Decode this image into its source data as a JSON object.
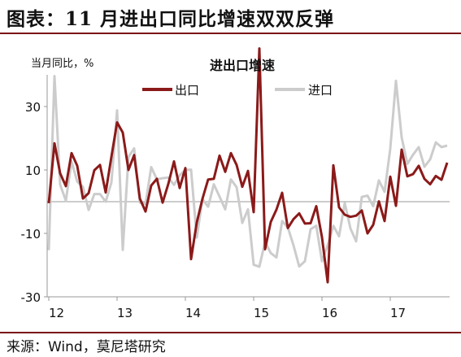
{
  "page": {
    "title": "图表：11 月进出口同比增速双双反弹",
    "source": "来源：Wind，莫尼塔研究"
  },
  "colors": {
    "export": "#8b1a1a",
    "import": "#cccccc",
    "rule": "#7a0f14",
    "axis": "#999999",
    "text": "#111111"
  },
  "chart_data": {
    "type": "line",
    "title": "进出口增速",
    "ylabel": "当月同比，%",
    "xlabel": "",
    "ylim": [
      -30,
      40
    ],
    "yticks": [
      30,
      10,
      -10,
      -30
    ],
    "x_start": "2012-01",
    "x_end": "2017-11",
    "xticks": [
      {
        "label": "12",
        "index": 0
      },
      {
        "label": "13",
        "index": 12
      },
      {
        "label": "14",
        "index": 24
      },
      {
        "label": "15",
        "index": 36
      },
      {
        "label": "16",
        "index": 48
      },
      {
        "label": "17",
        "index": 60
      }
    ],
    "legend": {
      "position": "top-left",
      "entries": [
        "出口",
        "进口"
      ]
    },
    "series": [
      {
        "name": "出口",
        "color": "#8b1a1a",
        "values": [
          -0.5,
          18.4,
          8.9,
          4.9,
          15.3,
          11.3,
          1.0,
          2.7,
          9.9,
          11.6,
          2.9,
          14.1,
          25.0,
          21.8,
          10.0,
          14.7,
          1.0,
          -3.1,
          5.1,
          7.2,
          -0.3,
          5.6,
          12.7,
          4.3,
          10.6,
          -18.1,
          -6.6,
          0.9,
          7.0,
          7.2,
          14.5,
          9.4,
          15.3,
          11.6,
          4.7,
          9.7,
          -3.3,
          48.3,
          -15.0,
          -6.4,
          -2.5,
          2.8,
          -8.3,
          -5.5,
          -3.7,
          -6.9,
          -6.8,
          -1.4,
          -11.2,
          -25.4,
          11.5,
          -1.8,
          -4.1,
          -4.8,
          -4.4,
          -2.8,
          -10.0,
          -7.3,
          0.1,
          -6.1,
          7.9,
          -1.3,
          16.4,
          8.0,
          8.7,
          11.3,
          7.2,
          5.5,
          8.1,
          6.9,
          12.3
        ]
      },
      {
        "name": "进口",
        "color": "#cccccc",
        "values": [
          -15.3,
          39.6,
          5.3,
          0.3,
          12.7,
          6.3,
          4.7,
          -2.6,
          2.4,
          2.4,
          0.0,
          6.0,
          28.8,
          -15.2,
          14.1,
          16.8,
          -0.3,
          -0.7,
          10.9,
          7.0,
          7.4,
          7.6,
          5.3,
          8.3,
          10.0,
          10.1,
          -11.3,
          0.8,
          -1.6,
          5.5,
          1.6,
          -2.4,
          7.0,
          4.6,
          -6.7,
          -2.4,
          -19.9,
          -20.5,
          -12.7,
          -16.2,
          -17.6,
          -6.1,
          -8.1,
          -13.8,
          -20.4,
          -18.8,
          -8.7,
          -7.6,
          -18.8,
          -13.8,
          -7.6,
          -10.9,
          -0.4,
          -8.4,
          -12.5,
          1.5,
          1.9,
          -1.4,
          6.7,
          3.1,
          16.7,
          38.1,
          20.3,
          11.9,
          14.8,
          17.2,
          11.0,
          13.3,
          18.7,
          17.2,
          17.7
        ]
      }
    ]
  }
}
